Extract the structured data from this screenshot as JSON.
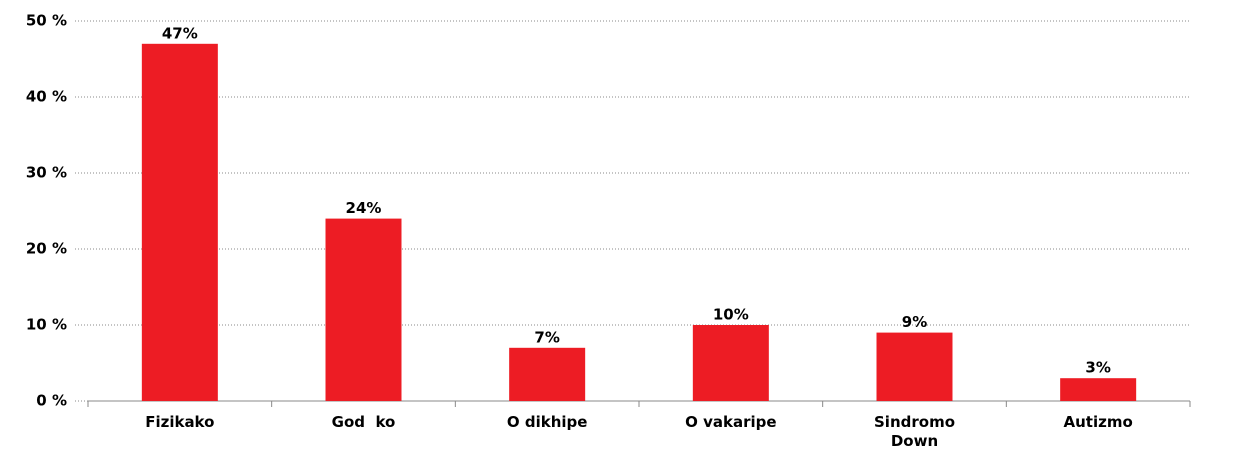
{
  "chart_data": {
    "type": "bar",
    "categories": [
      "Fizikako",
      "God  ko",
      "O dikhipe",
      "O vakaripe",
      "Sindromo Down",
      "Autizmo"
    ],
    "values": [
      47,
      24,
      7,
      10,
      9,
      3
    ],
    "value_labels": [
      "47%",
      "24%",
      "7%",
      "10%",
      "9%",
      "3%"
    ],
    "color": "#ed1c24",
    "ylim": [
      0,
      50
    ],
    "yticks": [
      {
        "value": 0,
        "label": "0 %"
      },
      {
        "value": 10,
        "label": "10 %"
      },
      {
        "value": 20,
        "label": "20 %"
      },
      {
        "value": 30,
        "label": "30 %"
      },
      {
        "value": 40,
        "label": "40 %"
      },
      {
        "value": 50,
        "label": "50 %"
      }
    ],
    "grid": true
  }
}
